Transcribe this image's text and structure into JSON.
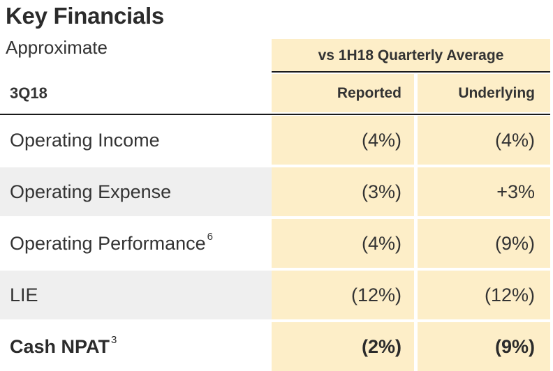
{
  "title": "Key Financials",
  "subtitle": "Approximate",
  "group_header": "vs 1H18 Quarterly Average",
  "period": "3Q18",
  "columns": [
    "Reported",
    "Underlying"
  ],
  "rows": [
    {
      "label": "Operating Income",
      "sup": "",
      "reported": "(4%)",
      "underlying": "(4%)",
      "bold": false,
      "shaded": false
    },
    {
      "label": "Operating Expense",
      "sup": "",
      "reported": "(3%)",
      "underlying": "+3%",
      "bold": false,
      "shaded": true
    },
    {
      "label": "Operating Performance",
      "sup": "6",
      "reported": "(4%)",
      "underlying": "(9%)",
      "bold": false,
      "shaded": false
    },
    {
      "label": "LIE",
      "sup": "",
      "reported": "(12%)",
      "underlying": "(12%)",
      "bold": false,
      "shaded": true
    },
    {
      "label": "Cash NPAT",
      "sup": "3",
      "reported": "(2%)",
      "underlying": "(9%)",
      "bold": true,
      "shaded": false
    }
  ],
  "colors": {
    "highlight": "#fdeec8",
    "shade": "#efefef",
    "rule": "#1a1a1a"
  }
}
